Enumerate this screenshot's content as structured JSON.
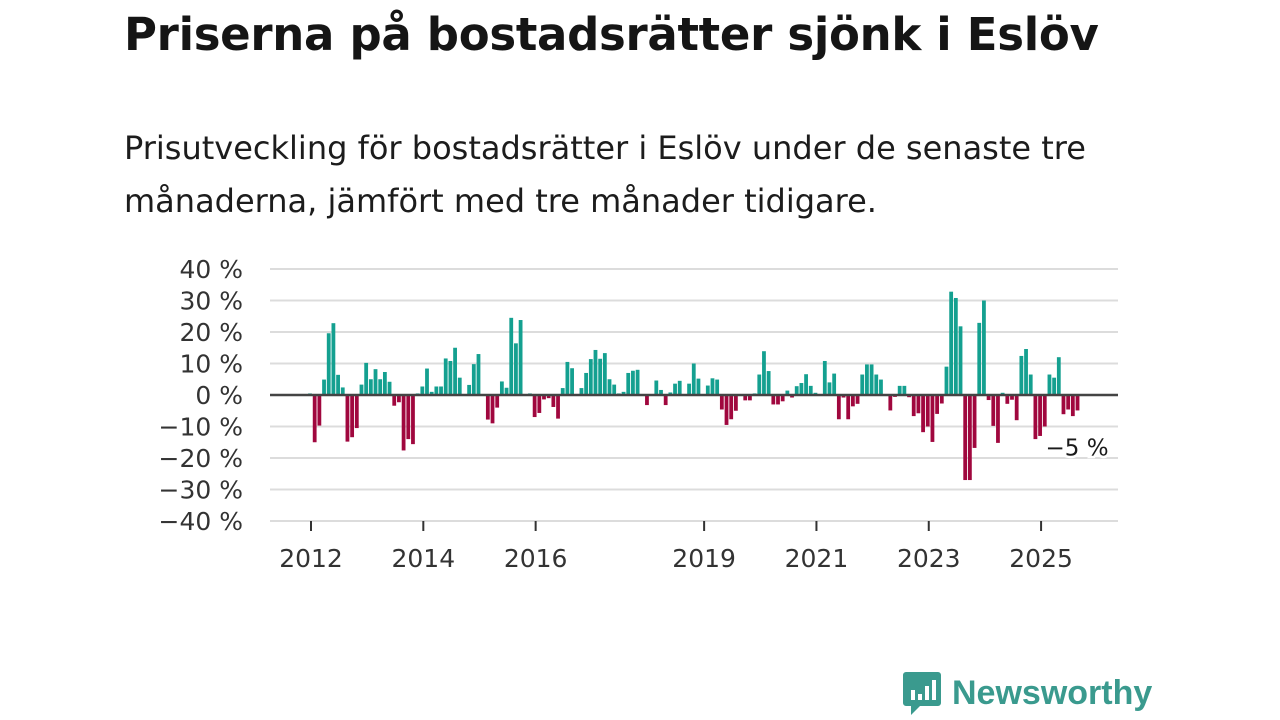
{
  "header": {
    "title": "Priserna på bostadsrätter sjönk i Eslöv",
    "subtitle": "Prisutveckling för bostadsrätter i Eslöv under de senaste tre månaderna, jämfört med tre månader tidigare."
  },
  "brand": {
    "name": "Newsworthy",
    "color": "#3a9a8e"
  },
  "chart_data": {
    "type": "bar",
    "title": "",
    "xlabel": "",
    "ylabel": "",
    "x_start": "2012-01",
    "x_unit": "month",
    "ylim": [
      -40,
      40
    ],
    "yticks": [
      40,
      30,
      20,
      10,
      0,
      -10,
      -20,
      -30,
      -40
    ],
    "ytick_labels": [
      "40 %",
      "30 %",
      "20 %",
      "10 %",
      "0 %",
      "−10 %",
      "−20 %",
      "−30 %",
      "−40 %"
    ],
    "xticks": [
      {
        "label": "2012",
        "index": 0
      },
      {
        "label": "2014",
        "index": 24
      },
      {
        "label": "2016",
        "index": 48
      },
      {
        "label": "2019",
        "index": 84
      },
      {
        "label": "2021",
        "index": 108
      },
      {
        "label": "2023",
        "index": 132
      },
      {
        "label": "2025",
        "index": 156
      }
    ],
    "grid": true,
    "colors": {
      "positive": "#14a090",
      "negative": "#a0073e"
    },
    "annotation": {
      "text": "−5 %",
      "index": 164
    },
    "values": [
      0.5,
      -15,
      -9.7,
      4.9,
      19.6,
      22.8,
      6.4,
      2.4,
      -14.8,
      -13.4,
      -10.5,
      3.3,
      10.2,
      5,
      8.2,
      5,
      7.3,
      4.2,
      -3.4,
      -2.3,
      -17.6,
      -14,
      -15.6,
      0.5,
      2.7,
      8.4,
      1,
      2.7,
      2.7,
      11.6,
      10.8,
      15,
      5.5,
      0,
      3.2,
      9.8,
      13,
      0,
      -7.8,
      -9,
      -4,
      4.3,
      2.3,
      24.5,
      16.4,
      23.8,
      0,
      0.5,
      -7,
      -5.7,
      -1.4,
      -1,
      -3.8,
      -7.5,
      2.2,
      10.5,
      8.5,
      0,
      2.2,
      7,
      11.4,
      14.3,
      11.5,
      13.3,
      5,
      3.3,
      0.5,
      1,
      7,
      7.7,
      8,
      0,
      -3.2,
      0,
      4.6,
      1.6,
      -3.2,
      0.8,
      3.6,
      4.5,
      0,
      3.6,
      10,
      5.2,
      0,
      3,
      5.3,
      4.9,
      -4.6,
      -9.5,
      -7.7,
      -5,
      0,
      -1.7,
      -1.7,
      0.5,
      6.5,
      13.9,
      7.6,
      -3,
      -3,
      -2,
      1.4,
      -0.8,
      2.8,
      3.8,
      6.6,
      2.9,
      0.7,
      0,
      10.8,
      4,
      6.8,
      -7.7,
      -0.8,
      -7.7,
      -3.6,
      -2.8,
      6.5,
      9.7,
      9.7,
      6.5,
      4.9,
      0,
      -4.9,
      -0.6,
      2.9,
      2.9,
      -0.7,
      -6.7,
      -5.8,
      -11.8,
      -10,
      -14.9,
      -6,
      -2.7,
      9,
      32.8,
      30.8,
      21.8,
      -27,
      -27,
      -16.8,
      22.9,
      30,
      -1.6,
      -9.8,
      -15.2,
      0.7,
      -2.8,
      -1.5,
      -8,
      12.4,
      14.6,
      6.5,
      -14,
      -13,
      -10,
      6.5,
      5.5,
      12,
      -6.1,
      -4.6,
      -6.7,
      -4.9
    ]
  }
}
